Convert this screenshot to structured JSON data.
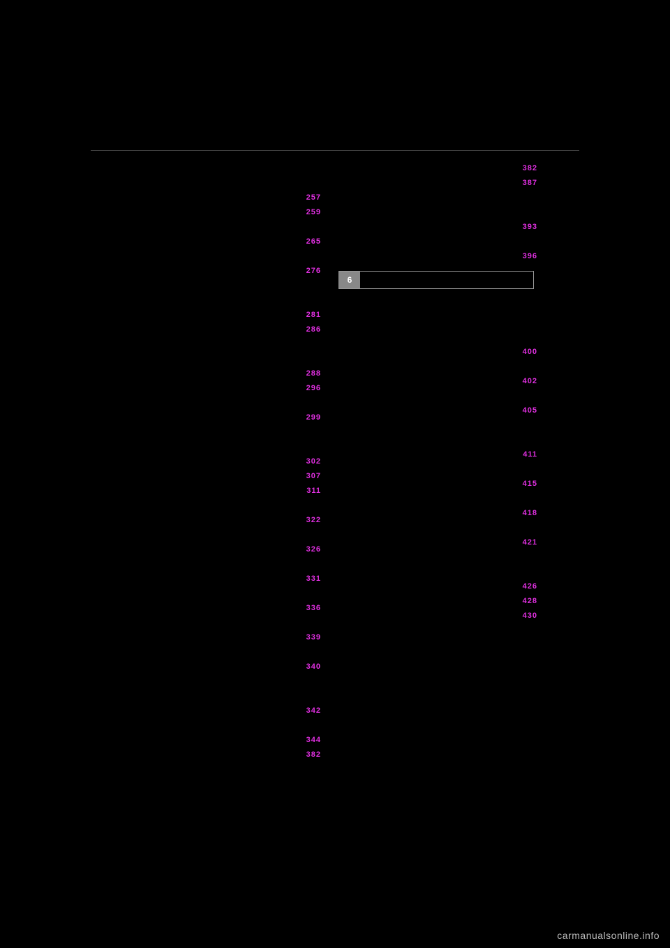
{
  "colors": {
    "background": "#000000",
    "page_number": "#e030e0",
    "divider": "#444444",
    "section_num_bg": "#888888",
    "section_num_fg": "#ffffff",
    "watermark": "#bbbbbb"
  },
  "section": {
    "number": "6",
    "title": ""
  },
  "left_entries": [
    {
      "label": "",
      "page": ""
    },
    {
      "label": "",
      "page": ""
    },
    {
      "label": "",
      "page": "257"
    },
    {
      "label": "",
      "page": "259"
    },
    {
      "label": "",
      "page": ""
    },
    {
      "label": "",
      "page": "265"
    },
    {
      "label": "",
      "page": ""
    },
    {
      "label": "",
      "page": "276"
    },
    {
      "label": "",
      "page": ""
    },
    {
      "label": "",
      "page": ""
    },
    {
      "label": "",
      "page": "281"
    },
    {
      "label": "",
      "page": "286"
    },
    {
      "label": "",
      "page": ""
    },
    {
      "label": "",
      "page": ""
    },
    {
      "label": "",
      "page": "288"
    },
    {
      "label": "",
      "page": "296"
    },
    {
      "label": "",
      "page": ""
    },
    {
      "label": "",
      "page": "299"
    },
    {
      "label": "",
      "page": ""
    },
    {
      "label": "",
      "page": ""
    },
    {
      "label": "",
      "page": "302"
    },
    {
      "label": "",
      "page": "307"
    },
    {
      "label": "",
      "page": "311"
    },
    {
      "label": "",
      "page": ""
    },
    {
      "label": "",
      "page": "322"
    },
    {
      "label": "",
      "page": ""
    },
    {
      "label": "",
      "page": "326"
    },
    {
      "label": "",
      "page": ""
    },
    {
      "label": "",
      "page": "331"
    },
    {
      "label": "",
      "page": ""
    },
    {
      "label": "",
      "page": "336"
    },
    {
      "label": "",
      "page": ""
    },
    {
      "label": "",
      "page": "339"
    },
    {
      "label": "",
      "page": ""
    },
    {
      "label": "",
      "page": "340"
    },
    {
      "label": "",
      "page": ""
    },
    {
      "label": "",
      "page": ""
    },
    {
      "label": "",
      "page": "342"
    },
    {
      "label": "",
      "page": ""
    },
    {
      "label": "",
      "page": "344"
    },
    {
      "label": "",
      "page": "382"
    }
  ],
  "right_upper_entries": [
    {
      "label": "",
      "page": "382"
    },
    {
      "label": "",
      "page": "387"
    },
    {
      "label": "",
      "page": ""
    },
    {
      "label": "",
      "page": ""
    },
    {
      "label": "",
      "page": "393"
    },
    {
      "label": "",
      "page": ""
    },
    {
      "label": "",
      "page": "396"
    }
  ],
  "right_lower_entries": [
    {
      "label": "",
      "page": ""
    },
    {
      "label": "",
      "page": ""
    },
    {
      "label": "",
      "page": ""
    },
    {
      "label": "",
      "page": "400"
    },
    {
      "label": "",
      "page": ""
    },
    {
      "label": "",
      "page": "402"
    },
    {
      "label": "",
      "page": ""
    },
    {
      "label": "",
      "page": "405"
    },
    {
      "label": "",
      "page": ""
    },
    {
      "label": "",
      "page": ""
    },
    {
      "label": "",
      "page": "411"
    },
    {
      "label": "",
      "page": ""
    },
    {
      "label": "",
      "page": "415"
    },
    {
      "label": "",
      "page": ""
    },
    {
      "label": "",
      "page": "418"
    },
    {
      "label": "",
      "page": ""
    },
    {
      "label": "",
      "page": "421"
    },
    {
      "label": "",
      "page": ""
    },
    {
      "label": "",
      "page": ""
    },
    {
      "label": "",
      "page": "426"
    },
    {
      "label": "",
      "page": "428"
    },
    {
      "label": "",
      "page": "430"
    }
  ],
  "watermark": "carmanualsonline.info"
}
